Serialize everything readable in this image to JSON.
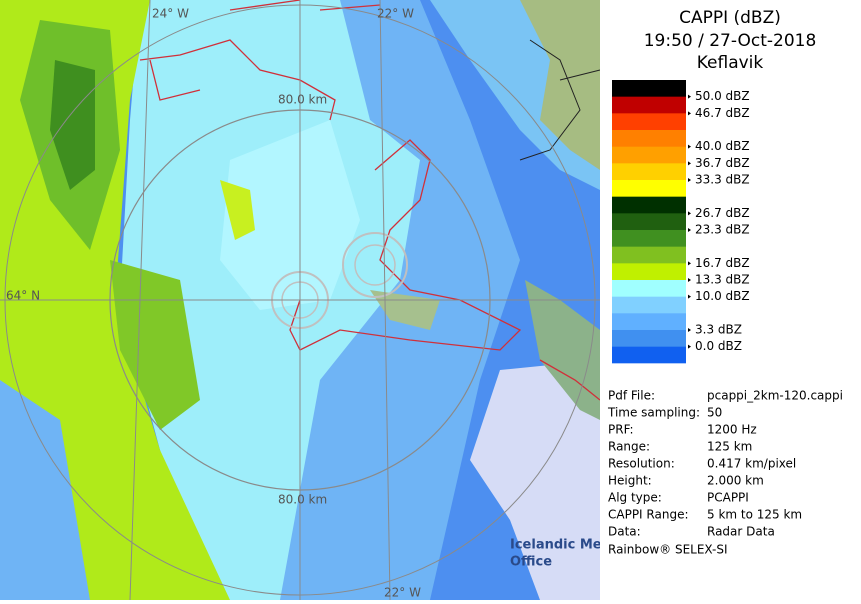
{
  "header": {
    "title": "CAPPI (dBZ)",
    "datetime": "19:50 / 27-Oct-2018",
    "station": "Keflavik"
  },
  "map": {
    "labels": {
      "lon_top_left": "24° W",
      "lon_top_right": "22° W",
      "lat_left": "64° N",
      "ring_top": "80.0 km",
      "ring_bottom": "80.0 km",
      "lon_bottom": "22° W"
    },
    "watermark": [
      "Icelandic Met",
      "Office"
    ]
  },
  "legend": {
    "colors": [
      "#000000",
      "#c00000",
      "#ff4000",
      "#ff8000",
      "#ffa000",
      "#ffd000",
      "#ffff00",
      "#003000",
      "#206010",
      "#409020",
      "#80c020",
      "#c0f000",
      "#a0ffff",
      "#80d0ff",
      "#60b0ff",
      "#4090f0",
      "#1060f0",
      "#ffffff"
    ],
    "labels": [
      "50.0 dBZ",
      "46.7 dBZ",
      "40.0 dBZ",
      "36.7 dBZ",
      "33.3 dBZ",
      "26.7 dBZ",
      "23.3 dBZ",
      "16.7 dBZ",
      "13.3 dBZ",
      "10.0 dBZ",
      "3.3 dBZ",
      "0.0 dBZ"
    ]
  },
  "info": {
    "rows": [
      [
        "Pdf File:",
        "pcappi_2km-120.cappi"
      ],
      [
        "Time sampling:",
        "50"
      ],
      [
        "PRF:",
        "1200 Hz"
      ],
      [
        "Range:",
        "125 km"
      ],
      [
        "Resolution:",
        "0.417 km/pixel"
      ],
      [
        "Height:",
        "2.000 km"
      ],
      [
        "Alg type:",
        "PCAPPI"
      ],
      [
        "CAPPI Range:",
        "5 km to 125 km"
      ],
      [
        "Data:",
        "Radar Data"
      ]
    ],
    "footer": "Rainbow® SELEX-SI"
  }
}
